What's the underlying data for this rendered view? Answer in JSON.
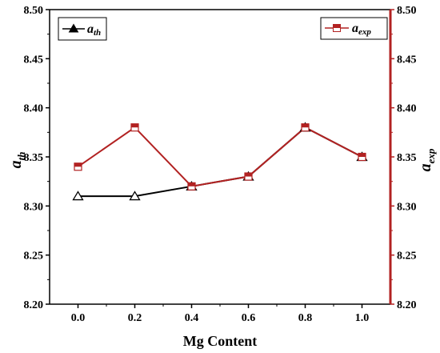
{
  "chart_data": {
    "type": "line",
    "x": [
      0.0,
      0.2,
      0.4,
      0.6,
      0.8,
      1.0
    ],
    "x_tick_labels": [
      "0.0",
      "0.2",
      "0.4",
      "0.6",
      "0.8",
      "1.0"
    ],
    "xlabel": "Mg Content",
    "xlim": [
      -0.1,
      1.1
    ],
    "y_left": {
      "label_base": "a",
      "label_sub": "th",
      "ylim": [
        8.2,
        8.5
      ],
      "tick_labels": [
        "8.20",
        "8.25",
        "8.30",
        "8.35",
        "8.40",
        "8.45",
        "8.50"
      ],
      "ticks": [
        8.2,
        8.25,
        8.3,
        8.35,
        8.4,
        8.45,
        8.5
      ]
    },
    "y_right": {
      "label_base": "a",
      "label_sub": "exp",
      "ylim": [
        8.2,
        8.5
      ],
      "tick_labels": [
        "8.20",
        "8.25",
        "8.30",
        "8.35",
        "8.40",
        "8.45",
        "8.50"
      ],
      "ticks": [
        8.2,
        8.25,
        8.3,
        8.35,
        8.4,
        8.45,
        8.5
      ]
    },
    "series": [
      {
        "name_base": "a",
        "name_sub": "th",
        "axis": "left",
        "marker": "triangle-open",
        "color": "#000000",
        "values": [
          8.31,
          8.31,
          8.32,
          8.33,
          8.38,
          8.35
        ]
      },
      {
        "name_base": "a",
        "name_sub": "exp",
        "axis": "right",
        "marker": "square-half-filled",
        "color": "#b22222",
        "values": [
          8.34,
          8.38,
          8.32,
          8.33,
          8.38,
          8.35
        ]
      }
    ],
    "grid": false,
    "legend_left_placement": "top-left",
    "legend_right_placement": "top-right"
  }
}
